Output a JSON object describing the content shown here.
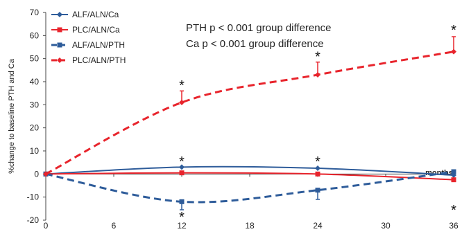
{
  "chart_data": {
    "type": "line",
    "title": "",
    "xlabel": "months",
    "ylabel": "%change to baseline PTH and Ca",
    "xlim": [
      0,
      36
    ],
    "ylim": [
      -20,
      70
    ],
    "xticks": [
      0,
      6,
      12,
      18,
      24,
      30,
      36
    ],
    "yticks": [
      -20,
      -10,
      0,
      10,
      20,
      30,
      40,
      50,
      60,
      70
    ],
    "x": [
      0,
      12,
      24,
      36
    ],
    "grid": false,
    "legend_position": "top-left",
    "series": [
      {
        "name": "ALF/ALN/Ca",
        "values": [
          0,
          3,
          2.5,
          -0.5
        ],
        "error_plus": [
          0,
          0,
          0,
          0
        ],
        "error_minus": [
          0,
          0,
          0,
          0
        ],
        "color": "#2E5C9A",
        "dashed": false,
        "marker": "diamond"
      },
      {
        "name": "PLC/ALN/Ca",
        "values": [
          0,
          0.5,
          0,
          -2.5
        ],
        "error_plus": [
          0,
          0,
          0,
          0
        ],
        "error_minus": [
          0,
          0,
          0,
          0
        ],
        "color": "#E8242C",
        "dashed": false,
        "marker": "square"
      },
      {
        "name": "ALF/ALN/PTH",
        "values": [
          0,
          -12,
          -7,
          1
        ],
        "error_plus": [
          0,
          0,
          0,
          0
        ],
        "error_minus": [
          0,
          3.5,
          4,
          0
        ],
        "color": "#2E5C9A",
        "dashed": true,
        "marker": "square"
      },
      {
        "name": "PLC/ALN/PTH",
        "values": [
          0,
          31,
          43,
          53
        ],
        "error_plus": [
          0,
          5,
          5.5,
          6.5
        ],
        "error_minus": [
          0,
          0,
          0,
          0
        ],
        "color": "#E8242C",
        "dashed": true,
        "marker": "diamond"
      }
    ],
    "annotations": [
      {
        "text": "PTH   p < 0.001 group difference"
      },
      {
        "text": "Ca     p < 0.001 group difference"
      }
    ],
    "significance_markers": [
      {
        "symbol": "*",
        "x": 12,
        "y": 38.5
      },
      {
        "symbol": "*",
        "x": 24,
        "y": 51
      },
      {
        "symbol": "*",
        "x": 36,
        "y": 62.5
      },
      {
        "symbol": "*",
        "x": 12,
        "y": 5.5
      },
      {
        "symbol": "*",
        "x": 24,
        "y": 5.5
      },
      {
        "symbol": "*",
        "x": 12,
        "y": -18.5
      },
      {
        "symbol": "*",
        "x": 36,
        "y": -15.5
      }
    ]
  }
}
